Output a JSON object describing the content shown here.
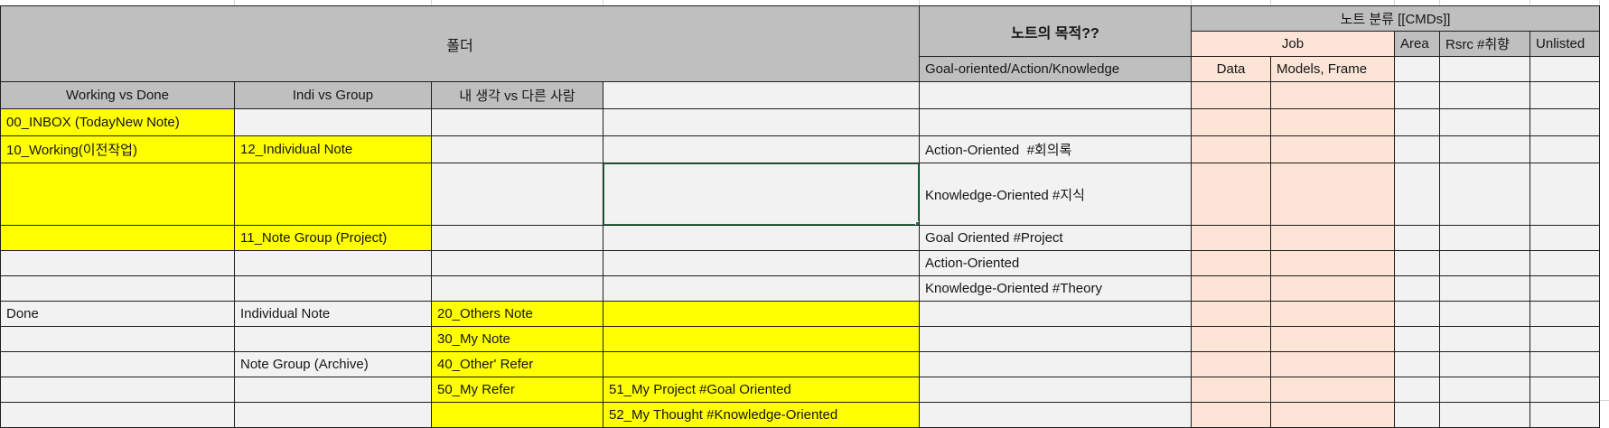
{
  "sheet": {
    "headers": {
      "folder": "폴더",
      "purpose": "노트의 목적??",
      "purpose_value": "Goal-oriented/Action/Knowledge",
      "cmds": "노트 분류 [[CMDs]]",
      "job": "Job",
      "area": "Area",
      "rsrc": "Rsrc #취향",
      "unlisted": "Unlisted",
      "job_sub_data": "Data",
      "job_sub_models": "Models, Frame",
      "col_working_done": "Working vs Done",
      "col_indi_group": "Indi vs Group",
      "col_my_others": "내 생각 vs 다른 사람"
    },
    "cells": {
      "a5": "00_INBOX (TodayNew Note)",
      "a6": "10_Working(이전작업)",
      "b6": "12_Individual Note",
      "e6": "Action-Oriented  #회의록",
      "e7": "Knowledge-Oriented #지식",
      "b8": "11_Note Group (Project)",
      "e8": "Goal Oriented #Project",
      "e9": "Action-Oriented",
      "e10": "Knowledge-Oriented #Theory",
      "a11": "Done",
      "b11": "Individual Note",
      "c11": "20_Others Note",
      "c12": "30_My Note",
      "b13": "Note Group (Archive)",
      "c13": "40_Other' Refer",
      "c14": "50_My Refer",
      "d14": "51_My Project #Goal Oriented",
      "d15": "52_My Thought #Knowledge-Oriented"
    },
    "selection": {
      "cell": "D7"
    },
    "colors": {
      "header_gray": "#bfbfbf",
      "body_cell": "#f2f2f2",
      "highlight_yellow": "#ffff00",
      "accent_peach": "#fce4d6",
      "selection_green": "#217346",
      "grid_border": "#1f1f1f"
    }
  }
}
